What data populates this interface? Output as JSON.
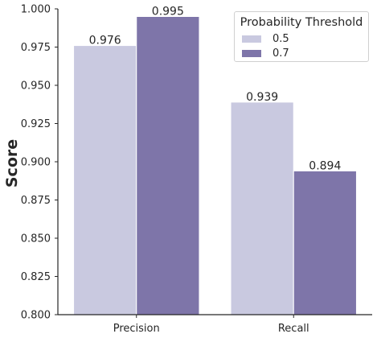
{
  "chart_data": {
    "type": "bar",
    "categories": [
      "Precision",
      "Recall"
    ],
    "series": [
      {
        "name": "0.5",
        "values": [
          0.976,
          0.939
        ],
        "labels": [
          "0.976",
          "0.939"
        ]
      },
      {
        "name": "0.7",
        "values": [
          0.995,
          0.894
        ],
        "labels": [
          "0.995",
          "0.894"
        ]
      }
    ],
    "ylabel": "Score",
    "xlabel": "",
    "ylim": [
      0.8,
      1.0
    ],
    "yticks": [
      "0.800",
      "0.825",
      "0.850",
      "0.875",
      "0.900",
      "0.925",
      "0.950",
      "0.975",
      "1.000"
    ],
    "legend_title": "Probability Threshold",
    "legend_position": "top-right",
    "grid": false,
    "colors": [
      "#c9c9e0",
      "#7e75a9"
    ]
  }
}
